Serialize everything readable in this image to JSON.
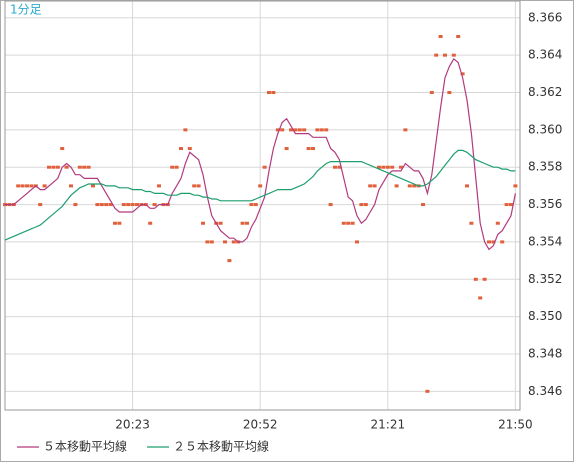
{
  "chart_data": {
    "type": "line",
    "title": "1分足",
    "categories": [
      null,
      null,
      null,
      null,
      null,
      null,
      null,
      null,
      null,
      null,
      null,
      null,
      null,
      null,
      null,
      null,
      null,
      null,
      null,
      null,
      null,
      null,
      null,
      null,
      null,
      null,
      null,
      null,
      null,
      "20:23",
      null,
      null,
      null,
      null,
      null,
      null,
      null,
      null,
      null,
      null,
      null,
      null,
      null,
      null,
      null,
      null,
      null,
      null,
      null,
      null,
      null,
      null,
      null,
      null,
      null,
      null,
      null,
      null,
      "20:52",
      null,
      null,
      null,
      null,
      null,
      null,
      null,
      null,
      null,
      null,
      null,
      null,
      null,
      null,
      null,
      null,
      null,
      null,
      null,
      null,
      null,
      null,
      null,
      null,
      null,
      null,
      null,
      null,
      "21:21",
      null,
      null,
      null,
      null,
      null,
      null,
      null,
      null,
      null,
      null,
      null,
      null,
      null,
      null,
      null,
      null,
      null,
      null,
      null,
      null,
      null,
      null,
      null,
      null,
      null,
      null,
      null,
      null,
      "21:50"
    ],
    "series": [
      {
        "mode": "markers",
        "color": "#e0603c",
        "values": [
          8.356,
          8.356,
          8.356,
          8.357,
          8.357,
          8.357,
          8.357,
          8.357,
          8.356,
          8.357,
          8.358,
          8.358,
          8.358,
          8.359,
          8.358,
          8.357,
          8.356,
          8.358,
          8.358,
          8.358,
          8.357,
          8.356,
          8.356,
          8.356,
          8.356,
          8.355,
          8.355,
          8.356,
          8.356,
          8.356,
          8.356,
          8.356,
          8.356,
          8.355,
          8.356,
          8.357,
          8.356,
          8.356,
          8.358,
          8.358,
          8.359,
          8.36,
          8.359,
          8.357,
          8.357,
          8.355,
          8.354,
          8.354,
          8.355,
          8.355,
          8.354,
          8.353,
          8.354,
          8.354,
          8.355,
          8.355,
          8.356,
          8.356,
          8.357,
          8.358,
          8.362,
          8.362,
          8.36,
          8.36,
          8.359,
          8.36,
          8.36,
          8.36,
          8.36,
          8.359,
          8.359,
          8.36,
          8.36,
          8.36,
          8.356,
          8.358,
          8.358,
          8.355,
          8.355,
          8.355,
          8.354,
          8.356,
          8.356,
          8.357,
          8.357,
          8.358,
          8.358,
          8.358,
          8.358,
          8.357,
          8.358,
          8.36,
          8.357,
          8.357,
          8.357,
          8.356,
          8.346,
          8.362,
          8.364,
          8.365,
          8.364,
          8.362,
          8.364,
          8.365,
          8.363,
          8.357,
          8.355,
          8.352,
          8.351,
          8.352,
          8.354,
          8.354,
          8.355,
          8.354,
          8.356,
          8.356,
          8.357
        ]
      },
      {
        "name": "５本移動平均線",
        "mode": "line",
        "color": "#b23a7e",
        "values": [
          8.356,
          8.356,
          8.356,
          8.3562,
          8.3564,
          8.3566,
          8.3568,
          8.357,
          8.3568,
          8.3568,
          8.357,
          8.3572,
          8.3574,
          8.358,
          8.3582,
          8.358,
          8.3576,
          8.3576,
          8.3574,
          8.3574,
          8.3574,
          8.3574,
          8.357,
          8.3566,
          8.3562,
          8.3558,
          8.3556,
          8.3556,
          8.3556,
          8.3556,
          8.3558,
          8.356,
          8.356,
          8.3558,
          8.3558,
          8.356,
          8.356,
          8.356,
          8.3566,
          8.357,
          8.3574,
          8.3582,
          8.3588,
          8.3586,
          8.3584,
          8.3576,
          8.3564,
          8.3554,
          8.355,
          8.3546,
          8.3544,
          8.3542,
          8.3542,
          8.354,
          8.354,
          8.3542,
          8.3548,
          8.3552,
          8.3558,
          8.3564,
          8.3578,
          8.359,
          8.3598,
          8.3604,
          8.3606,
          8.3602,
          8.3598,
          8.3598,
          8.3598,
          8.3598,
          8.3596,
          8.3596,
          8.3596,
          8.3596,
          8.359,
          8.3588,
          8.3584,
          8.3574,
          8.3564,
          8.3562,
          8.3554,
          8.355,
          8.3552,
          8.3556,
          8.356,
          8.3568,
          8.3572,
          8.3576,
          8.3578,
          8.3578,
          8.3578,
          8.3582,
          8.358,
          8.3578,
          8.3578,
          8.3574,
          8.3566,
          8.3576,
          8.3594,
          8.3612,
          8.3628,
          8.3634,
          8.3638,
          8.3636,
          8.3628,
          8.3616,
          8.3598,
          8.3574,
          8.355,
          8.354,
          8.3536,
          8.3538,
          8.3544,
          8.3546,
          8.355,
          8.3554,
          8.3566
        ]
      },
      {
        "name": "２５本移動平均線",
        "mode": "line",
        "color": "#1f9e6e",
        "values": [
          8.3541,
          8.3542,
          8.3543,
          8.3544,
          8.3545,
          8.3546,
          8.3547,
          8.3548,
          8.3549,
          8.3551,
          8.3553,
          8.3555,
          8.3557,
          8.3559,
          8.3562,
          8.3565,
          8.3567,
          8.3569,
          8.357,
          8.3571,
          8.3571,
          8.3571,
          8.3571,
          8.357,
          8.357,
          8.357,
          8.3569,
          8.3569,
          8.3569,
          8.3568,
          8.3568,
          8.3568,
          8.3567,
          8.3567,
          8.3566,
          8.3566,
          8.3566,
          8.3565,
          8.3565,
          8.3565,
          8.3566,
          8.3566,
          8.3566,
          8.3565,
          8.3565,
          8.3564,
          8.3564,
          8.3563,
          8.3563,
          8.3562,
          8.3562,
          8.3562,
          8.3562,
          8.3562,
          8.3562,
          8.3562,
          8.3562,
          8.3563,
          8.3564,
          8.3565,
          8.3566,
          8.3567,
          8.3568,
          8.3568,
          8.3568,
          8.3568,
          8.3569,
          8.357,
          8.3571,
          8.3573,
          8.3575,
          8.3578,
          8.358,
          8.3582,
          8.3583,
          8.3583,
          8.3583,
          8.3583,
          8.3583,
          8.3583,
          8.3583,
          8.3583,
          8.3582,
          8.3581,
          8.358,
          8.3579,
          8.3578,
          8.3577,
          8.3576,
          8.3575,
          8.3574,
          8.3573,
          8.3572,
          8.3571,
          8.357,
          8.357,
          8.3571,
          8.3573,
          8.3575,
          8.3578,
          8.3581,
          8.3584,
          8.3587,
          8.3589,
          8.3589,
          8.3588,
          8.3586,
          8.3584,
          8.3583,
          8.3582,
          8.3581,
          8.358,
          8.358,
          8.3579,
          8.3579,
          8.3578,
          8.3578
        ]
      }
    ],
    "ylim": [
      8.345,
      8.3669
    ],
    "yticks": [
      8.346,
      8.348,
      {
        "value": 8.35,
        "label": "8.350"
      },
      8.352,
      8.354,
      8.356,
      8.358,
      {
        "value": 8.36,
        "label": "8.360"
      },
      8.362,
      8.364,
      8.366
    ],
    "grid": true
  }
}
